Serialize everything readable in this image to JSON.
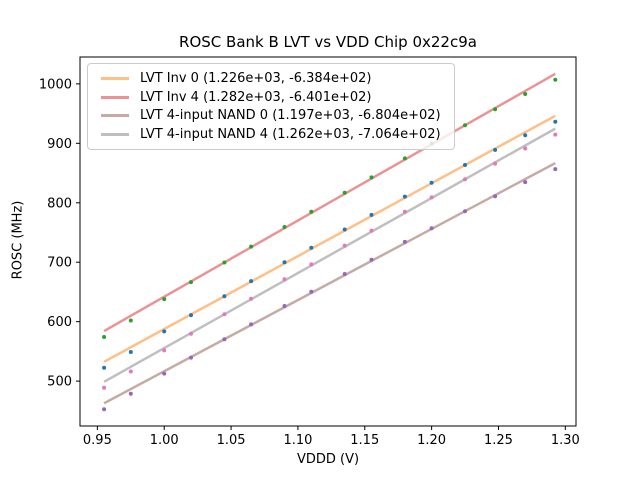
{
  "chart_data": {
    "type": "scatter",
    "title": "ROSC Bank B LVT vs VDD Chip 0x22c9a",
    "xlabel": "VDDD (V)",
    "ylabel": "ROSC (MHz)",
    "grid": false,
    "legend_position": "upper left",
    "xlim": [
      0.937,
      1.308
    ],
    "ylim": [
      424.5,
      1045.2
    ],
    "xtick_labels": [
      "0.95",
      "1.00",
      "1.05",
      "1.10",
      "1.15",
      "1.20",
      "1.25",
      "1.30"
    ],
    "xtick_values": [
      0.95,
      1.0,
      1.05,
      1.1,
      1.15,
      1.2,
      1.25,
      1.3
    ],
    "ytick_labels": [
      "500",
      "600",
      "700",
      "800",
      "900",
      "1000"
    ],
    "ytick_values": [
      500,
      600,
      700,
      800,
      900,
      1000
    ],
    "fit_x_range": [
      0.955,
      1.2925
    ],
    "x": [
      0.955,
      0.975,
      1.0,
      1.02,
      1.045,
      1.065,
      1.09,
      1.11,
      1.135,
      1.155,
      1.18,
      1.2,
      1.225,
      1.2475,
      1.27,
      1.2925
    ],
    "series": [
      {
        "name": "LVT Inv 0",
        "legend_label": "LVT Inv 0 (1.226e+03, -6.384e+02)",
        "fit_slope": 1226.0,
        "fit_intercept": -638.4,
        "line_color": "#ffbf86",
        "marker_color": "#1f77b4",
        "y": [
          522.4,
          549.0,
          583.6,
          611.1,
          642.8,
          668.3,
          699.9,
          724.5,
          755.1,
          779.6,
          810.3,
          833.8,
          863.5,
          889.0,
          913.6,
          936.2
        ]
      },
      {
        "name": "LVT Inv 4",
        "legend_label": "LVT Inv 4 (1.282e+03, -6.401e+02)",
        "fit_slope": 1282.0,
        "fit_intercept": -640.1,
        "line_color": "#eb9394",
        "marker_color": "#2ca02c",
        "y": [
          574.2,
          601.9,
          637.9,
          666.5,
          699.6,
          726.2,
          759.3,
          784.9,
          817.0,
          842.6,
          874.7,
          899.3,
          930.4,
          957.2,
          983.0,
          1007.1
        ]
      },
      {
        "name": "LVT 4-input NAND 0",
        "legend_label": "LVT 4-input NAND 0 (1.197e+03, -6.804e+02)",
        "fit_slope": 1197.0,
        "fit_intercept": -680.4,
        "line_color": "#c6aba5",
        "marker_color": "#9467bd",
        "y": [
          452.7,
          478.7,
          512.6,
          539.5,
          570.5,
          595.4,
          626.3,
          650.3,
          680.2,
          704.1,
          734.1,
          757.0,
          785.9,
          810.9,
          834.8,
          856.7
        ]
      },
      {
        "name": "LVT 4-input NAND 4",
        "legend_label": "LVT 4-input NAND 4 (1.262e+03, -7.064e+02)",
        "fit_slope": 1262.0,
        "fit_intercept": -706.4,
        "line_color": "#bfbfbf",
        "marker_color": "#e377c2",
        "y": [
          488.8,
          516.1,
          551.6,
          579.8,
          612.4,
          638.6,
          671.2,
          696.4,
          728.0,
          753.2,
          784.8,
          809.0,
          839.6,
          865.9,
          891.3,
          914.7
        ]
      }
    ],
    "colors": {
      "axes_frame": "#000000",
      "legend_border": "#cccccc",
      "background": "#ffffff"
    }
  }
}
